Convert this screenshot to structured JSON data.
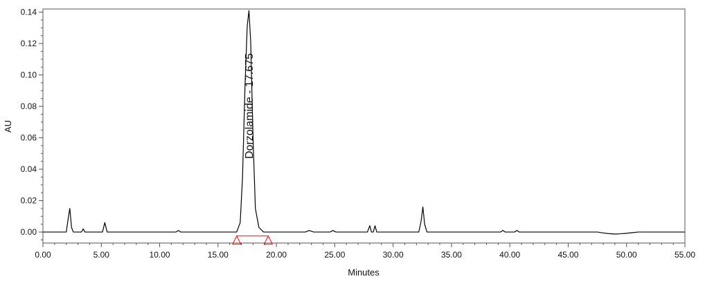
{
  "chart_data": {
    "type": "line",
    "title": "",
    "xlabel": "Minutes",
    "ylabel": "AU",
    "xlim": [
      0,
      55
    ],
    "ylim": [
      -0.007,
      0.142
    ],
    "grid": false,
    "legend": "none",
    "x_ticks": [
      0,
      5,
      10,
      15,
      20,
      25,
      30,
      35,
      40,
      45,
      50,
      55
    ],
    "x_tick_labels": [
      "0.00",
      "5.00",
      "10.00",
      "15.00",
      "20.00",
      "25.00",
      "30.00",
      "35.00",
      "40.00",
      "45.00",
      "50.00",
      "55.00"
    ],
    "y_ticks": [
      0,
      0.02,
      0.04,
      0.06,
      0.08,
      0.1,
      0.12,
      0.14
    ],
    "y_tick_labels": [
      "0.00",
      "0.02",
      "0.04",
      "0.06",
      "0.08",
      "0.10",
      "0.12",
      "0.14"
    ],
    "series": [
      {
        "x": [
          0,
          2.0,
          2.15,
          2.3,
          2.45,
          2.6,
          3.3,
          3.45,
          3.6,
          5.1,
          5.3,
          5.5,
          11.4,
          11.6,
          11.8,
          16.6,
          16.9,
          17.1,
          17.3,
          17.5,
          17.65,
          17.8,
          18.0,
          18.2,
          18.5,
          18.9,
          22.5,
          22.8,
          23.2,
          24.6,
          24.85,
          25.1,
          27.8,
          28.0,
          28.15,
          28.3,
          28.45,
          28.6,
          32.2,
          32.4,
          32.55,
          32.7,
          32.9,
          39.2,
          39.4,
          39.6,
          40.4,
          40.6,
          40.8,
          47.5,
          48.0,
          48.5,
          49.0,
          49.5,
          50.0,
          50.5,
          51.0,
          55
        ],
        "y": [
          0,
          0,
          0.008,
          0.015,
          0.003,
          0,
          0,
          0.002,
          0,
          0,
          0.006,
          0,
          0,
          0.001,
          0,
          0,
          0.006,
          0.035,
          0.09,
          0.131,
          0.141,
          0.121,
          0.06,
          0.015,
          0.003,
          0,
          0,
          0.001,
          0,
          0,
          0.001,
          0,
          0,
          0.004,
          0,
          0,
          0.004,
          0,
          0,
          0.007,
          0.016,
          0.005,
          0,
          0,
          0.001,
          0,
          0,
          0.001,
          0,
          0,
          -0.0006,
          -0.001,
          -0.0013,
          -0.0011,
          -0.0008,
          -0.0004,
          0,
          0
        ]
      }
    ],
    "baseline": {
      "x": [
        16.6,
        19.3
      ],
      "y": [
        -0.0025,
        -0.0025
      ],
      "color": "#ff0000"
    },
    "peak_markers": [
      {
        "x": 16.6,
        "color": "#ff0000"
      },
      {
        "x": 19.3,
        "color": "#ff0000"
      }
    ],
    "peak_annotation": {
      "text": "Dorzolamide - 17.675",
      "x": 17.675
    },
    "colors": {
      "trace": "#000000",
      "integration": "#ff0000",
      "frame": "#555555"
    }
  }
}
